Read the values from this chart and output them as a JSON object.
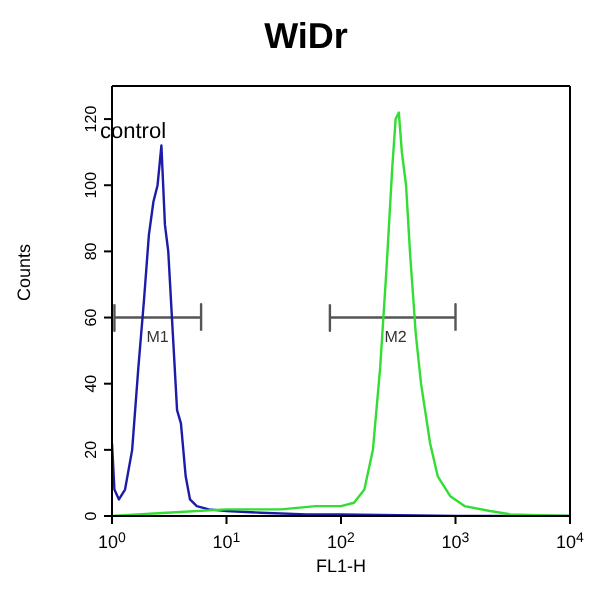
{
  "chart_data": {
    "type": "line",
    "title": "WiDr",
    "xlabel": "FL1-H",
    "ylabel": "Counts",
    "log": "x",
    "xlim": [
      1,
      10000
    ],
    "xticks": [
      {
        "value": 1,
        "label": "10$^{0}$"
      },
      {
        "value": 10,
        "label": "10$^{1}$"
      },
      {
        "value": 100,
        "label": "10$^{2}$"
      },
      {
        "value": 1000,
        "label": "10$^{3}$"
      },
      {
        "value": 10000,
        "label": "10$^{4}$"
      }
    ],
    "ylim": [
      0,
      130
    ],
    "yticks": [
      0,
      20,
      40,
      60,
      80,
      100,
      120
    ],
    "annotations": [
      "control",
      {
        "text": "M1",
        "x": 2.5,
        "y": 60
      },
      {
        "text": "M2",
        "x": 300,
        "y": 60
      }
    ],
    "series": [
      {
        "color": "#555555",
        "x": [
          1.05,
          1.05,
          1.05,
          6,
          6,
          6
        ],
        "values": [
          64,
          56,
          60,
          60,
          64,
          56
        ]
      },
      {
        "color": "#555555",
        "x": [
          80,
          80,
          80,
          1000,
          1000,
          1000
        ],
        "values": [
          64,
          56,
          60,
          60,
          64,
          56
        ]
      },
      {
        "color": "#1c1ca8",
        "x": [
          1,
          1.05,
          1.15,
          1.3,
          1.5,
          1.7,
          1.9,
          2.1,
          2.3,
          2.5,
          2.7,
          2.9,
          3.1,
          3.4,
          3.7,
          4.0,
          4.4,
          4.8,
          5.5,
          7,
          10,
          20,
          50,
          100,
          1000,
          10000
        ],
        "values": [
          22,
          8,
          5,
          8,
          20,
          45,
          65,
          85,
          95,
          100,
          112,
          88,
          80,
          55,
          32,
          28,
          12,
          5,
          3,
          2,
          1.5,
          1,
          0.5,
          0.5,
          0,
          0
        ]
      },
      {
        "color": "#33dd33",
        "x": [
          1,
          3,
          10,
          30,
          60,
          100,
          130,
          160,
          190,
          220,
          250,
          280,
          300,
          320,
          340,
          370,
          400,
          450,
          500,
          600,
          700,
          900,
          1200,
          2000,
          3000,
          10000
        ],
        "values": [
          0,
          1,
          2,
          2,
          3,
          3,
          4,
          8,
          20,
          45,
          75,
          105,
          120,
          122,
          110,
          100,
          80,
          55,
          40,
          22,
          12,
          6,
          3,
          1.5,
          0.5,
          0
        ]
      }
    ]
  }
}
